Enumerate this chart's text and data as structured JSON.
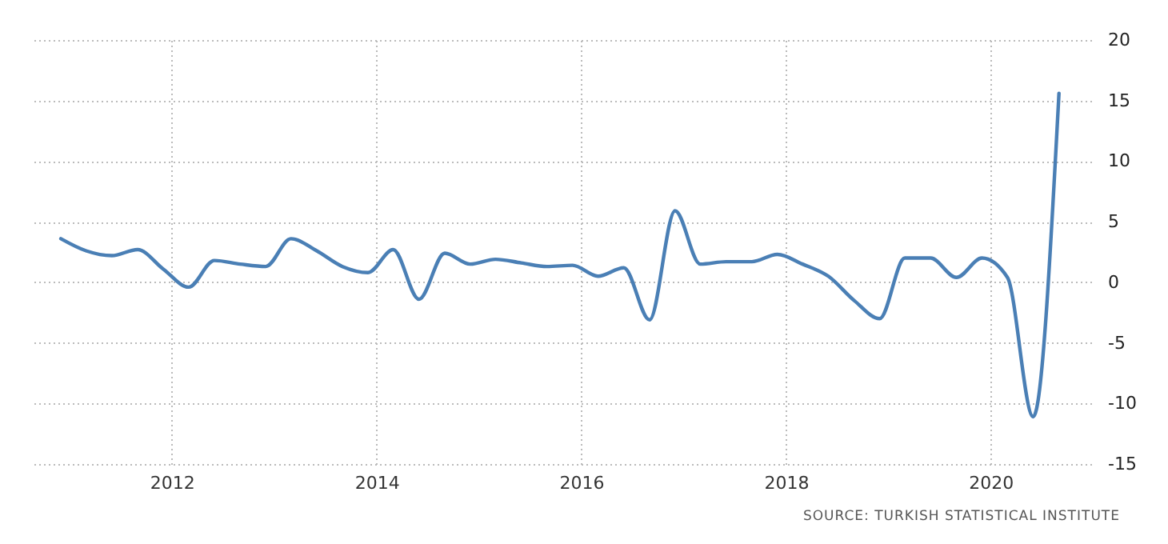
{
  "chart_data": {
    "type": "line",
    "x": [
      "2010-12",
      "2011-03",
      "2011-06",
      "2011-09",
      "2011-12",
      "2012-03",
      "2012-06",
      "2012-09",
      "2012-12",
      "2013-03",
      "2013-06",
      "2013-09",
      "2013-12",
      "2014-03",
      "2014-06",
      "2014-09",
      "2014-12",
      "2015-03",
      "2015-06",
      "2015-09",
      "2015-12",
      "2016-03",
      "2016-06",
      "2016-09",
      "2016-12",
      "2017-03",
      "2017-06",
      "2017-09",
      "2017-12",
      "2018-03",
      "2018-06",
      "2018-09",
      "2018-12",
      "2019-03",
      "2019-06",
      "2019-09",
      "2019-12",
      "2020-03",
      "2020-06",
      "2020-09"
    ],
    "series": [
      {
        "color": "#4a7fb5",
        "values": [
          3.6,
          2.6,
          2.2,
          2.7,
          1.1,
          -0.4,
          1.8,
          1.5,
          1.3,
          3.6,
          2.6,
          1.3,
          0.8,
          2.7,
          -1.4,
          2.4,
          1.5,
          1.9,
          1.6,
          1.3,
          1.4,
          0.5,
          1.2,
          -3.1,
          5.9,
          1.5,
          1.7,
          1.7,
          2.3,
          1.5,
          0.5,
          -1.5,
          -3.0,
          2.0,
          2.0,
          0.4,
          2.0,
          0.4,
          -11.1,
          15.6
        ]
      }
    ],
    "xlim": [
      "2010-08-20",
      "2020-12-25"
    ],
    "xticks": [
      "2012",
      "2014",
      "2016",
      "2018",
      "2020"
    ],
    "ylim": [
      -15,
      20
    ],
    "yticks": [
      -15,
      -10,
      -5,
      0,
      5,
      10,
      15,
      20
    ],
    "grid": true,
    "marker": "none",
    "line_style": "solid",
    "annotations": [
      "SOURCE: TURKISH STATISTICAL INSTITUTE"
    ]
  }
}
